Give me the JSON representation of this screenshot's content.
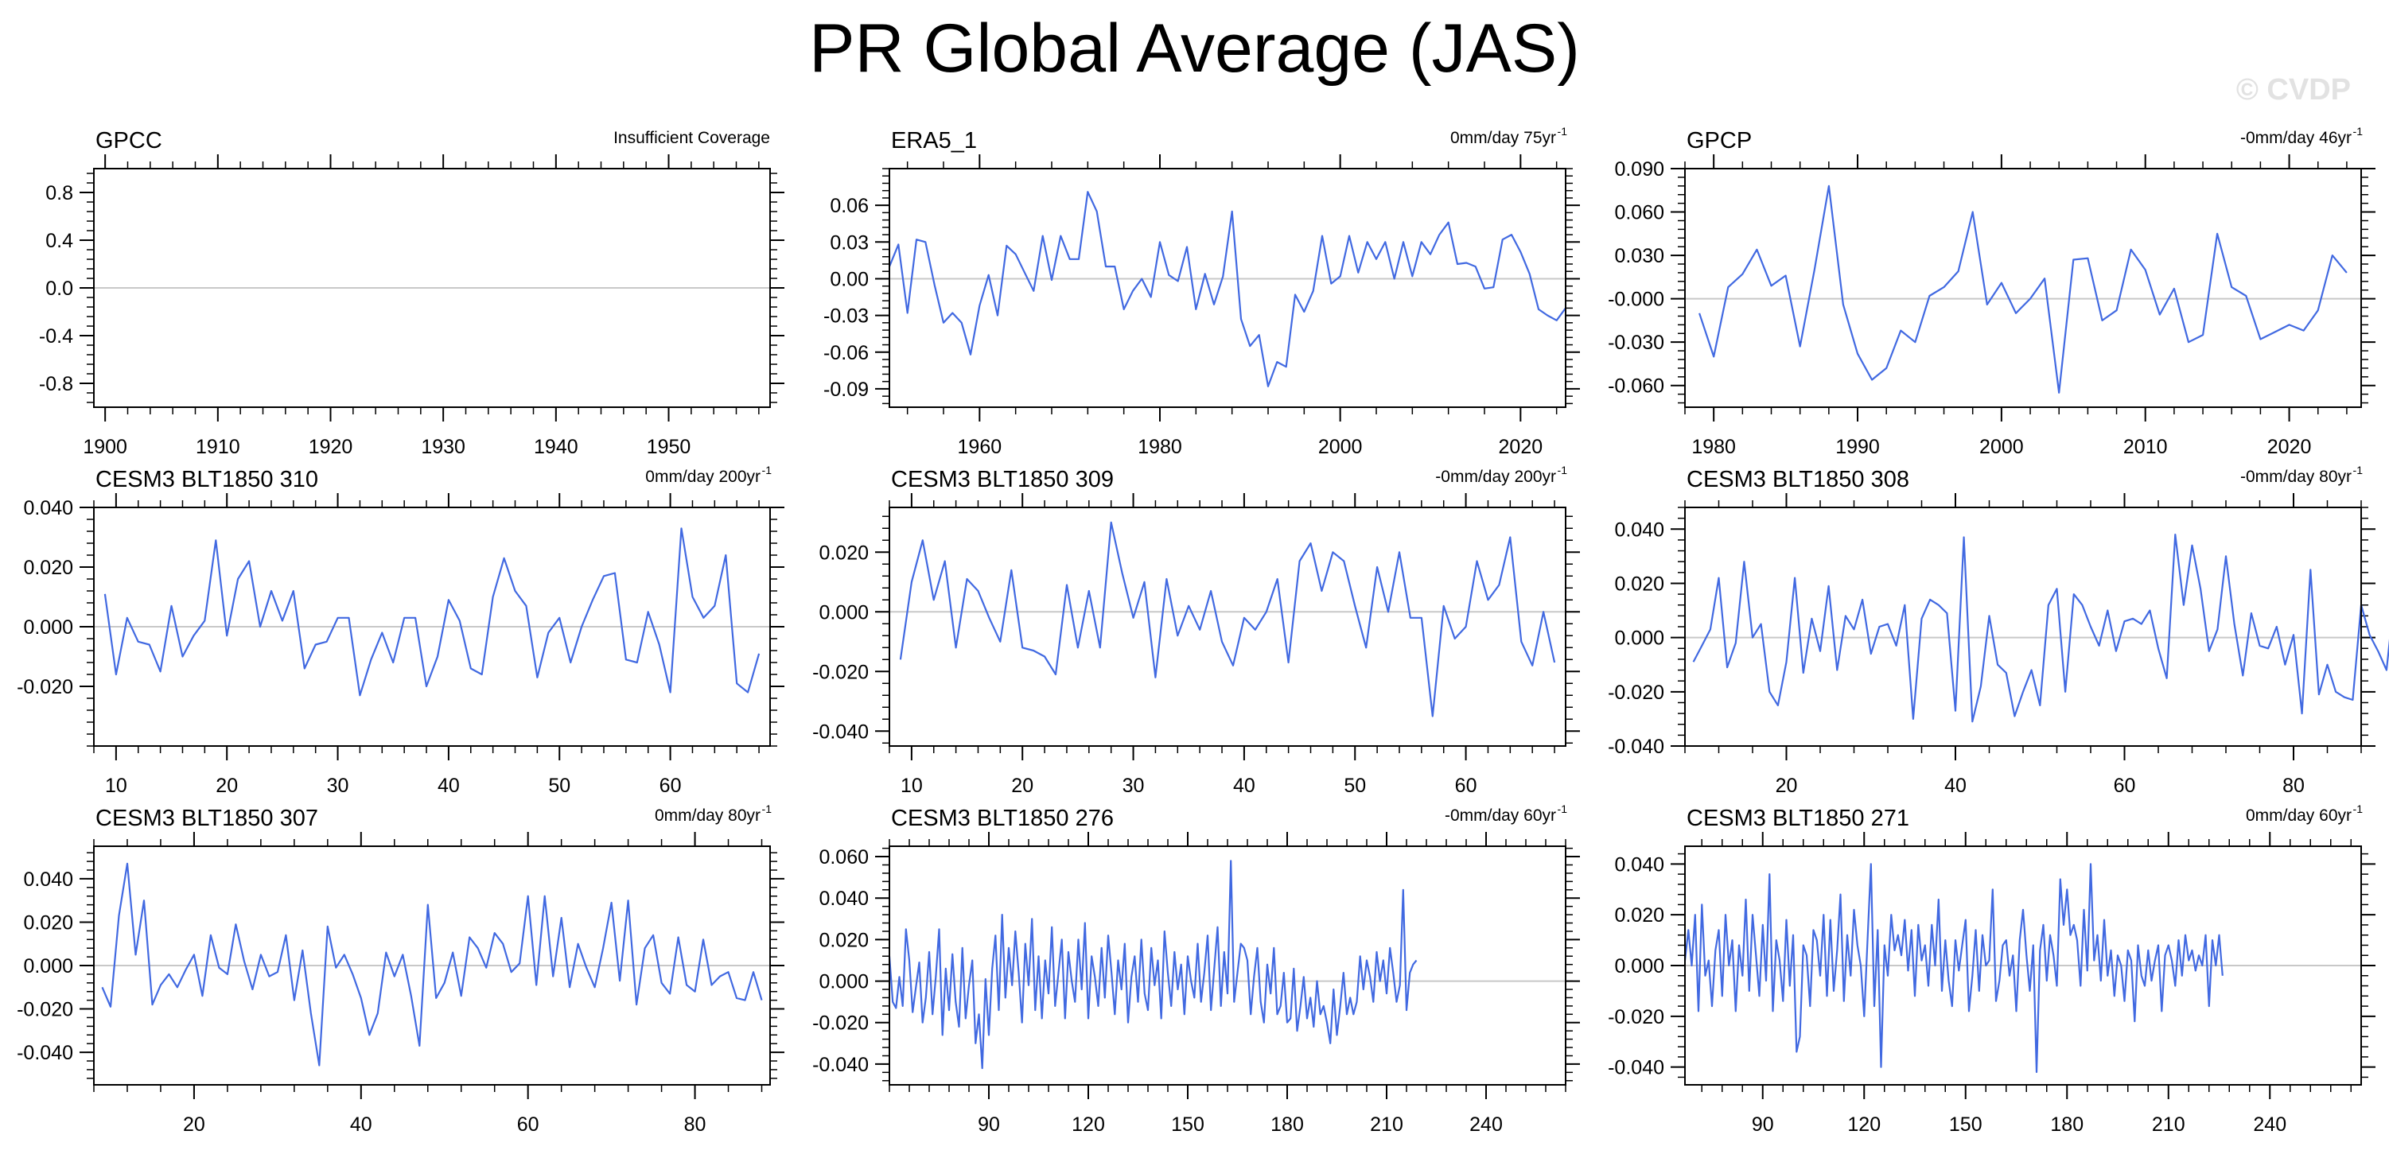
{
  "title": "PR Global Average (JAS)",
  "watermark": "© CVDP",
  "series_color": "#4169e1",
  "chart_data": [
    {
      "type": "line",
      "name": "GPCC",
      "annotation": "Insufficient Coverage",
      "xlim": [
        1899,
        1959
      ],
      "ylim": [
        -1,
        1
      ],
      "xticks": [
        1900,
        1910,
        1920,
        1930,
        1940,
        1950
      ],
      "yticks": [
        0.8,
        0.4,
        0.0,
        -0.4,
        -0.8
      ],
      "ytick_labels": [
        "0.8",
        "0.4",
        "0.0",
        "-0.4",
        "-0.8"
      ],
      "x_start": 1900,
      "values": []
    },
    {
      "type": "line",
      "name": "ERA5_1",
      "annotation": "0mm/day 75yr",
      "annotation_sup": "-1",
      "xlim": [
        1950,
        2025
      ],
      "ylim": [
        -0.105,
        0.09
      ],
      "xticks": [
        1960,
        1980,
        2000,
        2020
      ],
      "yticks": [
        0.06,
        0.03,
        0.0,
        -0.03,
        -0.06,
        -0.09
      ],
      "ytick_labels": [
        "0.06",
        "0.03",
        "0.00",
        "-0.03",
        "-0.06",
        "-0.09"
      ],
      "x_start": 1950,
      "values": [
        0.01,
        0.028,
        -0.028,
        0.032,
        0.03,
        -0.005,
        -0.036,
        -0.028,
        -0.036,
        -0.062,
        -0.022,
        0.003,
        -0.03,
        0.027,
        0.02,
        0.005,
        -0.01,
        0.035,
        -0.001,
        0.035,
        0.016,
        0.016,
        0.071,
        0.055,
        0.01,
        0.01,
        -0.025,
        -0.01,
        0.0,
        -0.015,
        0.03,
        0.003,
        -0.002,
        0.026,
        -0.025,
        0.004,
        -0.021,
        0.002,
        0.055,
        -0.033,
        -0.055,
        -0.046,
        -0.088,
        -0.068,
        -0.072,
        -0.013,
        -0.027,
        -0.01,
        0.035,
        -0.004,
        0.002,
        0.035,
        0.005,
        0.03,
        0.016,
        0.03,
        0.0,
        0.03,
        0.002,
        0.03,
        0.02,
        0.036,
        0.046,
        0.012,
        0.013,
        0.01,
        -0.008,
        -0.007,
        0.032,
        0.036,
        0.022,
        0.004,
        -0.025,
        -0.03,
        -0.034,
        -0.024
      ]
    },
    {
      "type": "line",
      "name": "GPCP",
      "annotation": "-0mm/day 46yr",
      "annotation_sup": "-1",
      "xlim": [
        1978,
        2025
      ],
      "ylim": [
        -0.075,
        0.09
      ],
      "xticks": [
        1980,
        1990,
        2000,
        2010,
        2020
      ],
      "yticks": [
        0.09,
        0.06,
        0.03,
        0.0,
        -0.03,
        -0.06
      ],
      "ytick_labels": [
        "0.090",
        "0.060",
        "0.030",
        "-0.000",
        "-0.030",
        "-0.060"
      ],
      "x_start": 1979,
      "values": [
        -0.01,
        -0.04,
        0.008,
        0.017,
        0.034,
        0.009,
        0.016,
        -0.033,
        0.02,
        0.078,
        -0.004,
        -0.038,
        -0.056,
        -0.048,
        -0.022,
        -0.03,
        0.002,
        0.008,
        0.019,
        0.06,
        -0.004,
        0.011,
        -0.01,
        0.0,
        0.014,
        -0.065,
        0.027,
        0.028,
        -0.015,
        -0.008,
        0.034,
        0.02,
        -0.011,
        0.007,
        -0.03,
        -0.025,
        0.045,
        0.008,
        0.002,
        -0.028,
        -0.023,
        -0.018,
        -0.022,
        -0.008,
        0.03,
        0.018
      ]
    },
    {
      "type": "line",
      "name": "CESM3 BLT1850 310",
      "annotation": "0mm/day 200yr",
      "annotation_sup": "-1",
      "xlim": [
        8,
        69
      ],
      "ylim": [
        -0.04,
        0.04
      ],
      "xticks": [
        10,
        20,
        30,
        40,
        50,
        60
      ],
      "yticks": [
        0.04,
        0.02,
        0.0,
        -0.02
      ],
      "ytick_labels": [
        "0.040",
        "0.020",
        "0.000",
        "-0.020"
      ],
      "x_start": 9,
      "values": [
        0.011,
        -0.016,
        0.003,
        -0.005,
        -0.006,
        -0.015,
        0.007,
        -0.01,
        -0.003,
        0.002,
        0.029,
        -0.003,
        0.016,
        0.022,
        0.0,
        0.012,
        0.002,
        0.012,
        -0.014,
        -0.006,
        -0.005,
        0.003,
        0.003,
        -0.023,
        -0.011,
        -0.002,
        -0.012,
        0.003,
        0.003,
        -0.02,
        -0.01,
        0.009,
        0.002,
        -0.014,
        -0.016,
        0.01,
        0.023,
        0.012,
        0.007,
        -0.017,
        -0.002,
        0.003,
        -0.012,
        0.0,
        0.009,
        0.017,
        0.018,
        -0.011,
        -0.012,
        0.005,
        -0.006,
        -0.022,
        0.033,
        0.01,
        0.003,
        0.007,
        0.024,
        -0.019,
        -0.022,
        -0.009
      ]
    },
    {
      "type": "line",
      "name": "CESM3 BLT1850 309",
      "annotation": "-0mm/day 200yr",
      "annotation_sup": "-1",
      "xlim": [
        8,
        69
      ],
      "ylim": [
        -0.045,
        0.035
      ],
      "xticks": [
        10,
        20,
        30,
        40,
        50,
        60
      ],
      "yticks": [
        0.02,
        0.0,
        -0.02,
        -0.04
      ],
      "ytick_labels": [
        "0.020",
        "0.000",
        "-0.020",
        "-0.040"
      ],
      "x_start": 9,
      "values": [
        -0.016,
        0.01,
        0.024,
        0.004,
        0.017,
        -0.012,
        0.011,
        0.007,
        -0.002,
        -0.01,
        0.014,
        -0.012,
        -0.013,
        -0.015,
        -0.021,
        0.009,
        -0.012,
        0.007,
        -0.012,
        0.03,
        0.013,
        -0.002,
        0.01,
        -0.022,
        0.011,
        -0.008,
        0.002,
        -0.006,
        0.007,
        -0.01,
        -0.018,
        -0.002,
        -0.006,
        0.0,
        0.011,
        -0.017,
        0.017,
        0.023,
        0.007,
        0.02,
        0.017,
        0.002,
        -0.012,
        0.015,
        0.0,
        0.02,
        -0.002,
        -0.002,
        -0.035,
        0.002,
        -0.009,
        -0.005,
        0.017,
        0.004,
        0.009,
        0.025,
        -0.01,
        -0.018,
        0.0,
        -0.017
      ]
    },
    {
      "type": "line",
      "name": "CESM3 BLT1850 308",
      "annotation": "-0mm/day 80yr",
      "annotation_sup": "-1",
      "xlim": [
        8,
        88
      ],
      "ylim": [
        -0.04,
        0.048
      ],
      "xticks": [
        20,
        40,
        60,
        80
      ],
      "yticks": [
        0.04,
        0.02,
        0.0,
        -0.02,
        -0.04
      ],
      "ytick_labels": [
        "0.040",
        "0.020",
        "0.000",
        "-0.020",
        "-0.040"
      ],
      "x_start": 9,
      "values": [
        -0.009,
        -0.003,
        0.003,
        0.022,
        -0.011,
        -0.002,
        0.028,
        0.0,
        0.005,
        -0.02,
        -0.025,
        -0.009,
        0.022,
        -0.013,
        0.007,
        -0.005,
        0.019,
        -0.012,
        0.008,
        0.003,
        0.014,
        -0.006,
        0.004,
        0.005,
        -0.003,
        0.012,
        -0.03,
        0.007,
        0.014,
        0.012,
        0.009,
        -0.027,
        0.037,
        -0.031,
        -0.018,
        0.008,
        -0.01,
        -0.013,
        -0.029,
        -0.02,
        -0.012,
        -0.025,
        0.012,
        0.018,
        -0.02,
        0.016,
        0.012,
        0.004,
        -0.003,
        0.01,
        -0.005,
        0.006,
        0.007,
        0.005,
        0.01,
        -0.004,
        -0.015,
        0.038,
        0.012,
        0.034,
        0.018,
        -0.005,
        0.003,
        0.03,
        0.005,
        -0.014,
        0.009,
        -0.003,
        -0.004,
        0.004,
        -0.01,
        0.001,
        -0.028,
        0.025,
        -0.021,
        -0.01,
        -0.02,
        -0.022,
        -0.023,
        0.012,
        0.001,
        -0.005,
        -0.012,
        0.017,
        -0.005,
        0.01
      ]
    },
    {
      "type": "line",
      "name": "CESM3 BLT1850 307",
      "annotation": "0mm/day 80yr",
      "annotation_sup": "-1",
      "xlim": [
        8,
        89
      ],
      "ylim": [
        -0.055,
        0.055
      ],
      "xticks": [
        20,
        40,
        60,
        80
      ],
      "yticks": [
        0.04,
        0.02,
        0.0,
        -0.02,
        -0.04
      ],
      "ytick_labels": [
        "0.040",
        "0.020",
        "0.000",
        "-0.020",
        "-0.040"
      ],
      "x_start": 9,
      "values": [
        -0.01,
        -0.019,
        0.023,
        0.047,
        0.005,
        0.03,
        -0.018,
        -0.009,
        -0.004,
        -0.01,
        -0.002,
        0.005,
        -0.014,
        0.014,
        -0.001,
        -0.004,
        0.019,
        0.002,
        -0.011,
        0.005,
        -0.005,
        -0.003,
        0.014,
        -0.016,
        0.007,
        -0.022,
        -0.046,
        0.018,
        -0.001,
        0.005,
        -0.004,
        -0.015,
        -0.032,
        -0.022,
        0.006,
        -0.005,
        0.005,
        -0.014,
        -0.037,
        0.028,
        -0.015,
        -0.008,
        0.006,
        -0.014,
        0.013,
        0.008,
        -0.001,
        0.015,
        0.01,
        -0.003,
        0.001,
        0.032,
        -0.009,
        0.032,
        -0.005,
        0.022,
        -0.01,
        0.01,
        -0.001,
        -0.01,
        0.008,
        0.029,
        -0.007,
        0.03,
        -0.018,
        0.008,
        0.014,
        -0.008,
        -0.013,
        0.013,
        -0.009,
        -0.012,
        0.012,
        -0.009,
        -0.005,
        -0.003,
        -0.015,
        -0.016,
        -0.003,
        -0.016
      ]
    },
    {
      "type": "line",
      "name": "CESM3 BLT1850 276",
      "annotation": "-0mm/day 60yr",
      "annotation_sup": "-1",
      "xlim": [
        60,
        264
      ],
      "ylim": [
        -0.05,
        0.065
      ],
      "xticks": [
        90,
        120,
        150,
        180,
        210,
        240
      ],
      "yticks": [
        0.06,
        0.04,
        0.02,
        0.0,
        -0.02,
        -0.04
      ],
      "ytick_labels": [
        "0.060",
        "0.040",
        "0.020",
        "0.000",
        "-0.020",
        "-0.040"
      ],
      "x_start": 60,
      "values": [
        0.012,
        -0.01,
        -0.013,
        0.002,
        -0.012,
        0.025,
        0.01,
        -0.015,
        -0.003,
        0.009,
        -0.02,
        -0.008,
        0.014,
        -0.016,
        0.002,
        0.025,
        -0.026,
        0.006,
        -0.014,
        0.013,
        -0.01,
        -0.022,
        0.016,
        -0.018,
        -0.002,
        0.01,
        -0.03,
        -0.016,
        -0.042,
        0.001,
        -0.026,
        0.006,
        0.022,
        -0.014,
        0.032,
        -0.008,
        0.016,
        -0.002,
        0.024,
        0.004,
        -0.02,
        0.018,
        -0.002,
        0.03,
        -0.014,
        0.012,
        -0.018,
        0.01,
        -0.006,
        0.026,
        -0.012,
        0.004,
        0.02,
        -0.018,
        0.014,
        0.0,
        -0.01,
        0.02,
        -0.004,
        0.028,
        -0.018,
        0.012,
        0.002,
        -0.012,
        0.016,
        -0.008,
        0.022,
        0.004,
        -0.016,
        0.01,
        -0.004,
        0.018,
        -0.02,
        0.002,
        0.012,
        -0.01,
        0.02,
        -0.006,
        -0.014,
        0.016,
        -0.002,
        0.01,
        -0.018,
        0.024,
        0.004,
        -0.012,
        0.014,
        -0.004,
        0.008,
        -0.016,
        0.012,
        0.0,
        -0.008,
        0.018,
        -0.01,
        0.004,
        0.022,
        -0.014,
        0.006,
        0.026,
        -0.012,
        0.014,
        -0.006,
        0.058,
        -0.01,
        0.004,
        0.018,
        0.016,
        0.01,
        -0.016,
        0.002,
        0.016,
        -0.01,
        -0.02,
        0.008,
        -0.006,
        0.016,
        -0.016,
        -0.012,
        0.004,
        -0.02,
        -0.018,
        0.006,
        -0.024,
        -0.012,
        0.002,
        -0.018,
        -0.008,
        -0.022,
        0.0,
        -0.016,
        -0.012,
        -0.02,
        -0.03,
        -0.004,
        -0.026,
        -0.012,
        0.004,
        -0.016,
        -0.008,
        -0.016,
        -0.01,
        0.012,
        -0.004,
        0.01,
        0.002,
        -0.01,
        0.014,
        0.0,
        0.01,
        -0.006,
        0.016,
        0.004,
        -0.01,
        -0.002,
        0.044,
        -0.014,
        0.004,
        0.008,
        0.01
      ]
    },
    {
      "type": "line",
      "name": "CESM3 BLT1850 271",
      "annotation": "0mm/day 60yr",
      "annotation_sup": "-1",
      "xlim": [
        67,
        267
      ],
      "ylim": [
        -0.047,
        0.047
      ],
      "xticks": [
        90,
        120,
        150,
        180,
        210,
        240
      ],
      "yticks": [
        0.04,
        0.02,
        0.0,
        -0.02,
        -0.04
      ],
      "ytick_labels": [
        "0.040",
        "0.020",
        "0.000",
        "-0.020",
        "-0.040"
      ],
      "x_start": 67,
      "values": [
        0.002,
        0.014,
        0.0,
        0.02,
        -0.018,
        0.024,
        -0.004,
        0.002,
        -0.016,
        0.006,
        0.014,
        -0.012,
        0.02,
        0.0,
        0.01,
        -0.018,
        0.008,
        -0.004,
        0.026,
        -0.01,
        0.02,
        0.004,
        -0.012,
        0.016,
        -0.006,
        0.036,
        -0.018,
        0.01,
        0.002,
        -0.014,
        0.018,
        -0.008,
        0.012,
        -0.034,
        -0.028,
        0.008,
        0.004,
        -0.016,
        0.014,
        0.01,
        -0.004,
        0.02,
        -0.012,
        0.018,
        -0.01,
        0.006,
        0.028,
        -0.014,
        0.012,
        -0.004,
        0.022,
        0.008,
        0.0,
        -0.02,
        0.01,
        0.04,
        -0.016,
        0.014,
        -0.04,
        0.008,
        -0.004,
        0.02,
        0.006,
        0.012,
        0.004,
        0.018,
        -0.002,
        0.014,
        -0.012,
        0.016,
        0.002,
        0.008,
        -0.008,
        0.016,
        0.0,
        0.026,
        -0.01,
        0.01,
        -0.006,
        -0.016,
        0.01,
        -0.002,
        0.008,
        0.018,
        -0.018,
        -0.004,
        0.014,
        -0.01,
        0.012,
        0.0,
        0.002,
        0.03,
        -0.014,
        -0.006,
        0.008,
        0.01,
        -0.004,
        0.004,
        -0.018,
        0.01,
        0.022,
        0.004,
        -0.01,
        0.008,
        -0.042,
        0.006,
        0.016,
        -0.006,
        0.012,
        0.004,
        -0.008,
        0.034,
        0.016,
        0.03,
        0.012,
        0.016,
        0.01,
        -0.008,
        0.022,
        -0.002,
        0.04,
        0.002,
        0.012,
        -0.006,
        0.018,
        -0.004,
        0.006,
        -0.012,
        0.004,
        0.0,
        -0.014,
        0.006,
        0.002,
        -0.022,
        0.008,
        -0.004,
        -0.008,
        0.006,
        -0.006,
        0.002,
        0.008,
        -0.018,
        0.004,
        0.008,
        0.002,
        -0.008,
        0.01,
        -0.004,
        0.012,
        0.002,
        0.006,
        -0.002,
        0.004,
        0.0,
        0.012,
        -0.016,
        0.01,
        0.0,
        0.012,
        -0.004
      ]
    }
  ]
}
